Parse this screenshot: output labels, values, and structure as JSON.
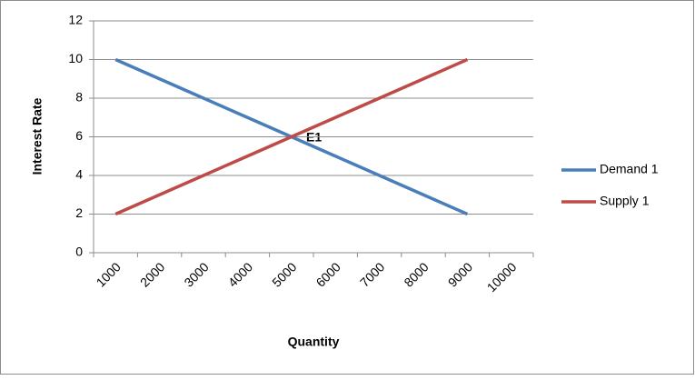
{
  "chart_data": {
    "type": "line",
    "x_label": "Quantity",
    "y_label": "Interest Rate",
    "annotation": "E1",
    "categories": [
      "1000",
      "2000",
      "3000",
      "4000",
      "5000",
      "6000",
      "7000",
      "8000",
      "9000",
      "10000"
    ],
    "series": [
      {
        "name": "Demand 1",
        "color": "#4a7ebb",
        "values": [
          10,
          9,
          8,
          7,
          6,
          5,
          4,
          3,
          2,
          null
        ]
      },
      {
        "name": "Supply 1",
        "color": "#be4b48",
        "values": [
          2,
          3,
          4,
          5,
          6,
          7,
          8,
          9,
          10,
          null
        ]
      }
    ],
    "ylim": [
      0,
      12
    ],
    "yticks": [
      0,
      2,
      4,
      6,
      8,
      10,
      12
    ],
    "grid": true,
    "legend": "right"
  }
}
